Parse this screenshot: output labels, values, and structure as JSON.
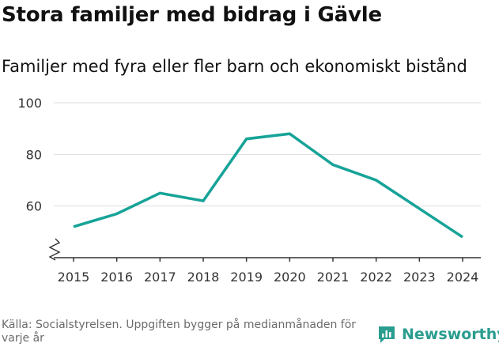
{
  "chart_data": {
    "type": "line",
    "title": "Stora familjer med bidrag i Gävle",
    "subtitle": "Familjer med fyra eller fler barn och ekonomiskt bistånd",
    "x": [
      2015,
      2016,
      2017,
      2018,
      2019,
      2020,
      2021,
      2022,
      2023,
      2024
    ],
    "series": [
      {
        "values": [
          52,
          57,
          65,
          62,
          86,
          88,
          76,
          70,
          59,
          48
        ]
      }
    ],
    "yticks": [
      60,
      80,
      100
    ],
    "ylim": [
      40,
      100
    ],
    "axis_break": true,
    "grid": true,
    "line_color": "#17a398",
    "xlabel": "",
    "ylabel": ""
  },
  "footer": {
    "source": "Källa: Socialstyrelsen. Uppgiften bygger på medianmånaden för varje år",
    "brand": "Newsworthy"
  },
  "colors": {
    "brand": "#2a9d8f",
    "grid": "#dddddd",
    "axis": "#333333"
  }
}
